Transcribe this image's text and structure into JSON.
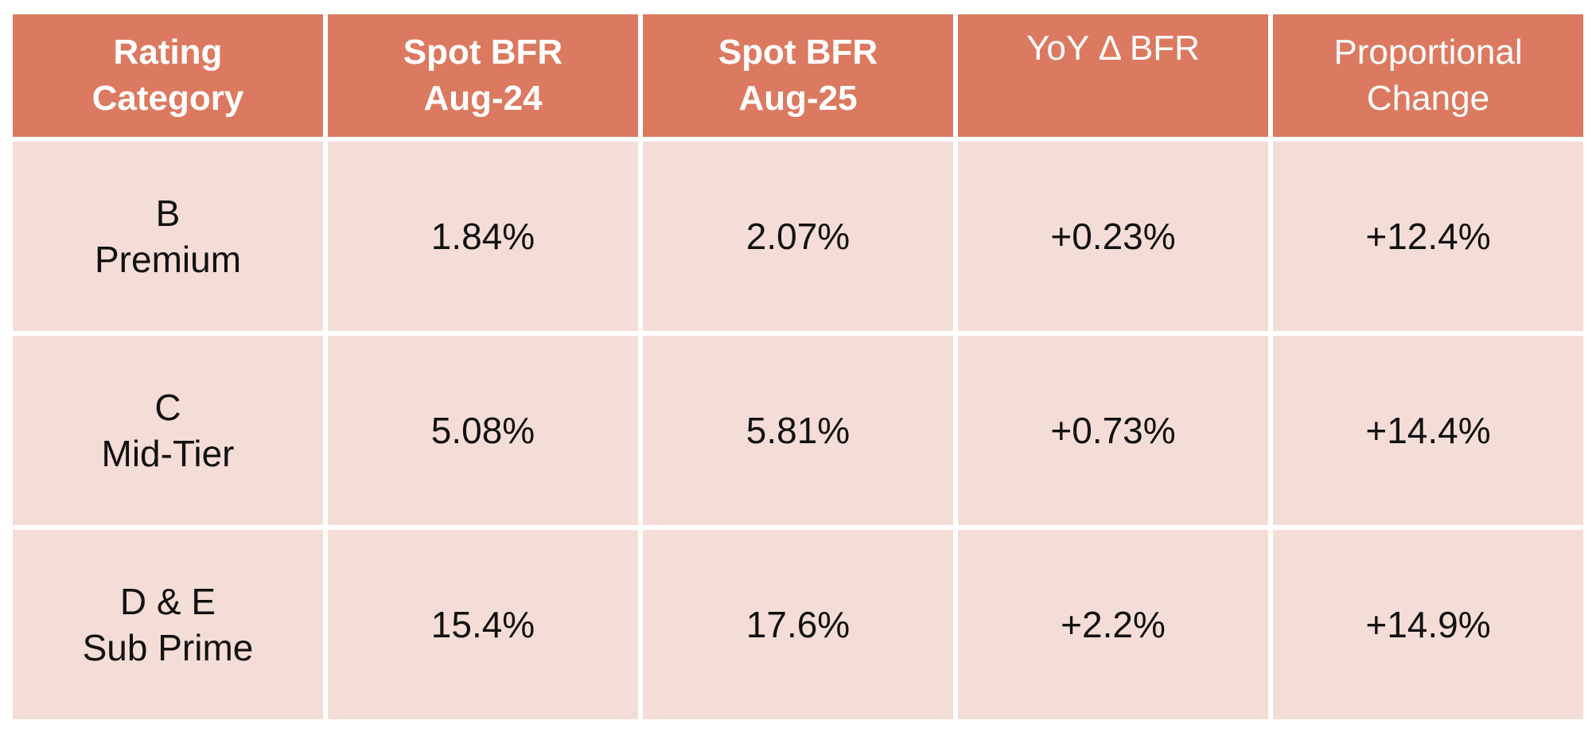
{
  "table": {
    "headers": [
      {
        "line1": "Rating",
        "line2": "Category"
      },
      {
        "line1": "Spot BFR",
        "line2": "Aug-24"
      },
      {
        "line1": "Spot BFR",
        "line2": "Aug-25"
      },
      {
        "line1": "YoY Δ BFR",
        "line2": ""
      },
      {
        "line1": "Proportional",
        "line2": "Change"
      }
    ],
    "rows": [
      {
        "rating_line1": "B",
        "rating_line2": "Premium",
        "aug24": "1.84%",
        "aug25": "2.07%",
        "yoy": "+0.23%",
        "prop": "+12.4%"
      },
      {
        "rating_line1": "C",
        "rating_line2": "Mid-Tier",
        "aug24": "5.08%",
        "aug25": "5.81%",
        "yoy": "+0.73%",
        "prop": "+14.4%"
      },
      {
        "rating_line1": "D & E",
        "rating_line2": "Sub Prime",
        "aug24": "15.4%",
        "aug25": "17.6%",
        "yoy": "+2.2%",
        "prop": "+14.9%"
      }
    ]
  },
  "colors": {
    "header_bg": "#db7a60",
    "cell_bg": "#f5ddd7",
    "header_text": "#ffffff",
    "cell_text": "#111111"
  }
}
